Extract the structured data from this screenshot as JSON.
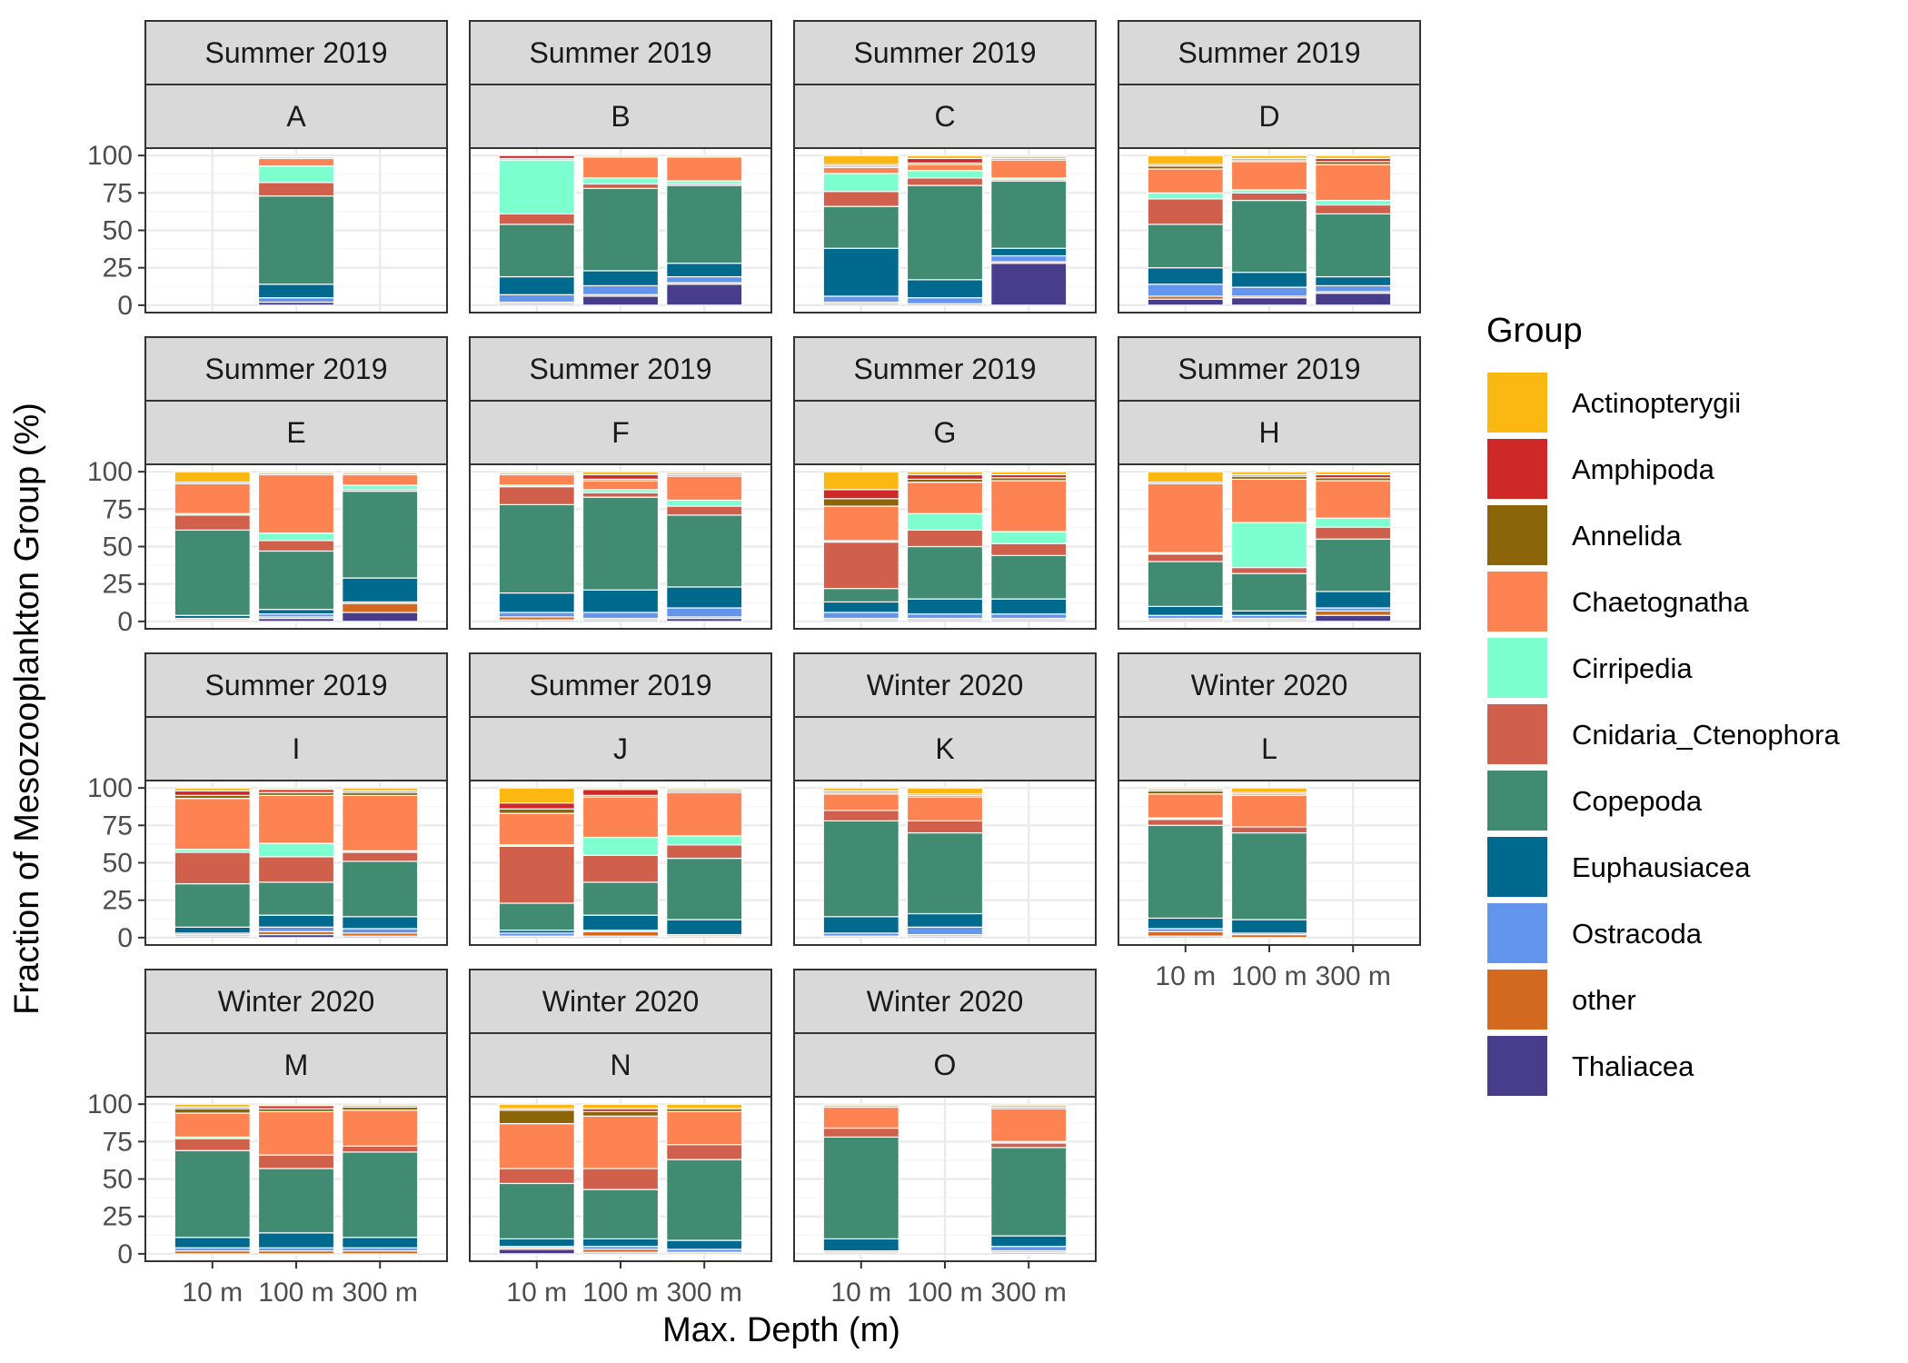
{
  "chart_data": {
    "type": "bar",
    "stacked": true,
    "xlabel": "Max. Depth (m)",
    "ylabel": "Fraction of Mesozooplankton Group (%)",
    "ylim": [
      0,
      100
    ],
    "y_ticks": [
      0,
      25,
      50,
      75,
      100
    ],
    "categories": [
      "10 m",
      "100 m",
      "300 m"
    ],
    "grid": true,
    "legend": {
      "title": "Group",
      "position": "right",
      "groups": [
        {
          "name": "Actinopterygii",
          "color": "#FBB812"
        },
        {
          "name": "Amphipoda",
          "color": "#CE2828"
        },
        {
          "name": "Annelida",
          "color": "#8C6508"
        },
        {
          "name": "Chaetognatha",
          "color": "#FD8452"
        },
        {
          "name": "Cirripedia",
          "color": "#7DFFD0"
        },
        {
          "name": "Cnidaria_Ctenophora",
          "color": "#D05F4B"
        },
        {
          "name": "Copepoda",
          "color": "#418B73"
        },
        {
          "name": "Euphausiacea",
          "color": "#006A8E"
        },
        {
          "name": "Ostracoda",
          "color": "#6495ED"
        },
        {
          "name": "other",
          "color": "#D2691E"
        },
        {
          "name": "Thaliacea",
          "color": "#483D8B"
        }
      ]
    },
    "stack_order_bottom_to_top": [
      "Thaliacea",
      "other",
      "Ostracoda",
      "Euphausiacea",
      "Copepoda",
      "Cnidaria_Ctenophora",
      "Cirripedia",
      "Chaetognatha",
      "Annelida",
      "Amphipoda",
      "Actinopterygii"
    ],
    "panels": [
      {
        "season": "Summer 2019",
        "station": "A",
        "bars": [
          null,
          {
            "Thaliacea": 2,
            "other": 0,
            "Ostracoda": 3,
            "Euphausiacea": 9,
            "Copepoda": 59,
            "Cnidaria_Ctenophora": 9,
            "Cirripedia": 11,
            "Chaetognatha": 5,
            "Annelida": 0,
            "Amphipoda": 0,
            "Actinopterygii": 1
          },
          null
        ]
      },
      {
        "season": "Summer 2019",
        "station": "B",
        "bars": [
          {
            "Thaliacea": 1,
            "other": 1,
            "Ostracoda": 5,
            "Euphausiacea": 12,
            "Copepoda": 35,
            "Cnidaria_Ctenophora": 7,
            "Cirripedia": 36,
            "Chaetognatha": 1,
            "Annelida": 0,
            "Amphipoda": 2,
            "Actinopterygii": 0
          },
          {
            "Thaliacea": 6,
            "other": 1,
            "Ostracoda": 6,
            "Euphausiacea": 10,
            "Copepoda": 55,
            "Cnidaria_Ctenophora": 3,
            "Cirripedia": 4,
            "Chaetognatha": 14,
            "Annelida": 0,
            "Amphipoda": 0,
            "Actinopterygii": 1
          },
          {
            "Thaliacea": 14,
            "other": 1,
            "Ostracoda": 4,
            "Euphausiacea": 9,
            "Copepoda": 52,
            "Cnidaria_Ctenophora": 1,
            "Cirripedia": 2,
            "Chaetognatha": 16,
            "Annelida": 0,
            "Amphipoda": 0,
            "Actinopterygii": 1
          }
        ]
      },
      {
        "season": "Summer 2019",
        "station": "C",
        "bars": [
          {
            "Thaliacea": 1,
            "other": 1,
            "Ostracoda": 4,
            "Euphausiacea": 32,
            "Copepoda": 28,
            "Cnidaria_Ctenophora": 10,
            "Cirripedia": 12,
            "Chaetognatha": 4,
            "Annelida": 1,
            "Amphipoda": 1,
            "Actinopterygii": 6
          },
          {
            "Thaliacea": 1,
            "other": 0,
            "Ostracoda": 4,
            "Euphausiacea": 12,
            "Copepoda": 63,
            "Cnidaria_Ctenophora": 5,
            "Cirripedia": 5,
            "Chaetognatha": 4,
            "Annelida": 1,
            "Amphipoda": 3,
            "Actinopterygii": 2
          },
          {
            "Thaliacea": 28,
            "other": 1,
            "Ostracoda": 4,
            "Euphausiacea": 5,
            "Copepoda": 45,
            "Cnidaria_Ctenophora": 1,
            "Cirripedia": 1,
            "Chaetognatha": 12,
            "Annelida": 1,
            "Amphipoda": 1,
            "Actinopterygii": 1
          }
        ]
      },
      {
        "season": "Summer 2019",
        "station": "D",
        "bars": [
          {
            "Thaliacea": 4,
            "other": 2,
            "Ostracoda": 8,
            "Euphausiacea": 11,
            "Copepoda": 29,
            "Cnidaria_Ctenophora": 17,
            "Cirripedia": 4,
            "Chaetognatha": 16,
            "Annelida": 2,
            "Amphipoda": 1,
            "Actinopterygii": 6
          },
          {
            "Thaliacea": 5,
            "other": 1,
            "Ostracoda": 6,
            "Euphausiacea": 10,
            "Copepoda": 48,
            "Cnidaria_Ctenophora": 5,
            "Cirripedia": 2,
            "Chaetognatha": 19,
            "Annelida": 1,
            "Amphipoda": 1,
            "Actinopterygii": 2
          },
          {
            "Thaliacea": 8,
            "other": 1,
            "Ostracoda": 4,
            "Euphausiacea": 6,
            "Copepoda": 42,
            "Cnidaria_Ctenophora": 6,
            "Cirripedia": 3,
            "Chaetognatha": 24,
            "Annelida": 2,
            "Amphipoda": 2,
            "Actinopterygii": 2
          }
        ]
      },
      {
        "season": "Summer 2019",
        "station": "E",
        "bars": [
          {
            "Thaliacea": 0,
            "other": 1,
            "Ostracoda": 1,
            "Euphausiacea": 2,
            "Copepoda": 57,
            "Cnidaria_Ctenophora": 10,
            "Cirripedia": 1,
            "Chaetognatha": 20,
            "Annelida": 1,
            "Amphipoda": 0,
            "Actinopterygii": 7
          },
          {
            "Thaliacea": 2,
            "other": 1,
            "Ostracoda": 2,
            "Euphausiacea": 3,
            "Copepoda": 39,
            "Cnidaria_Ctenophora": 7,
            "Cirripedia": 5,
            "Chaetognatha": 39,
            "Annelida": 1,
            "Amphipoda": 0,
            "Actinopterygii": 1
          },
          {
            "Thaliacea": 6,
            "other": 6,
            "Ostracoda": 1,
            "Euphausiacea": 16,
            "Copepoda": 58,
            "Cnidaria_Ctenophora": 1,
            "Cirripedia": 3,
            "Chaetognatha": 7,
            "Annelida": 1,
            "Amphipoda": 0,
            "Actinopterygii": 1
          }
        ]
      },
      {
        "season": "Summer 2019",
        "station": "F",
        "bars": [
          {
            "Thaliacea": 1,
            "other": 2,
            "Ostracoda": 3,
            "Euphausiacea": 13,
            "Copepoda": 59,
            "Cnidaria_Ctenophora": 12,
            "Cirripedia": 1,
            "Chaetognatha": 7,
            "Annelida": 1,
            "Amphipoda": 0,
            "Actinopterygii": 1
          },
          {
            "Thaliacea": 1,
            "other": 1,
            "Ostracoda": 4,
            "Euphausiacea": 15,
            "Copepoda": 62,
            "Cnidaria_Ctenophora": 3,
            "Cirripedia": 2,
            "Chaetognatha": 6,
            "Annelida": 1,
            "Amphipoda": 3,
            "Actinopterygii": 2
          },
          {
            "Thaliacea": 2,
            "other": 1,
            "Ostracoda": 6,
            "Euphausiacea": 14,
            "Copepoda": 48,
            "Cnidaria_Ctenophora": 6,
            "Cirripedia": 4,
            "Chaetognatha": 16,
            "Annelida": 1,
            "Amphipoda": 1,
            "Actinopterygii": 1
          }
        ]
      },
      {
        "season": "Summer 2019",
        "station": "G",
        "bars": [
          {
            "Thaliacea": 1,
            "other": 1,
            "Ostracoda": 4,
            "Euphausiacea": 7,
            "Copepoda": 9,
            "Cnidaria_Ctenophora": 31,
            "Cirripedia": 1,
            "Chaetognatha": 23,
            "Annelida": 5,
            "Amphipoda": 6,
            "Actinopterygii": 12
          },
          {
            "Thaliacea": 1,
            "other": 1,
            "Ostracoda": 3,
            "Euphausiacea": 10,
            "Copepoda": 35,
            "Cnidaria_Ctenophora": 11,
            "Cirripedia": 11,
            "Chaetognatha": 21,
            "Annelida": 2,
            "Amphipoda": 3,
            "Actinopterygii": 2
          },
          {
            "Thaliacea": 1,
            "other": 1,
            "Ostracoda": 3,
            "Euphausiacea": 10,
            "Copepoda": 29,
            "Cnidaria_Ctenophora": 8,
            "Cirripedia": 8,
            "Chaetognatha": 34,
            "Annelida": 2,
            "Amphipoda": 2,
            "Actinopterygii": 2
          }
        ]
      },
      {
        "season": "Summer 2019",
        "station": "H",
        "bars": [
          {
            "Thaliacea": 1,
            "other": 1,
            "Ostracoda": 2,
            "Euphausiacea": 6,
            "Copepoda": 30,
            "Cnidaria_Ctenophora": 5,
            "Cirripedia": 1,
            "Chaetognatha": 46,
            "Annelida": 1,
            "Amphipoda": 0,
            "Actinopterygii": 7
          },
          {
            "Thaliacea": 1,
            "other": 1,
            "Ostracoda": 2,
            "Euphausiacea": 3,
            "Copepoda": 25,
            "Cnidaria_Ctenophora": 4,
            "Cirripedia": 30,
            "Chaetognatha": 29,
            "Annelida": 2,
            "Amphipoda": 1,
            "Actinopterygii": 2
          },
          {
            "Thaliacea": 4,
            "other": 3,
            "Ostracoda": 2,
            "Euphausiacea": 11,
            "Copepoda": 35,
            "Cnidaria_Ctenophora": 8,
            "Cirripedia": 6,
            "Chaetognatha": 25,
            "Annelida": 2,
            "Amphipoda": 2,
            "Actinopterygii": 2
          }
        ]
      },
      {
        "season": "Summer 2019",
        "station": "I",
        "bars": [
          {
            "Thaliacea": 1,
            "other": 1,
            "Ostracoda": 1,
            "Euphausiacea": 4,
            "Copepoda": 29,
            "Cnidaria_Ctenophora": 21,
            "Cirripedia": 2,
            "Chaetognatha": 34,
            "Annelida": 2,
            "Amphipoda": 3,
            "Actinopterygii": 2
          },
          {
            "Thaliacea": 2,
            "other": 2,
            "Ostracoda": 3,
            "Euphausiacea": 8,
            "Copepoda": 22,
            "Cnidaria_Ctenophora": 17,
            "Cirripedia": 9,
            "Chaetognatha": 32,
            "Annelida": 2,
            "Amphipoda": 2,
            "Actinopterygii": 1
          },
          {
            "Thaliacea": 1,
            "other": 2,
            "Ostracoda": 3,
            "Euphausiacea": 8,
            "Copepoda": 37,
            "Cnidaria_Ctenophora": 6,
            "Cirripedia": 1,
            "Chaetognatha": 37,
            "Annelida": 2,
            "Amphipoda": 1,
            "Actinopterygii": 2
          }
        ]
      },
      {
        "season": "Summer 2019",
        "station": "J",
        "bars": [
          {
            "Thaliacea": 0,
            "other": 1,
            "Ostracoda": 2,
            "Euphausiacea": 2,
            "Copepoda": 18,
            "Cnidaria_Ctenophora": 38,
            "Cirripedia": 1,
            "Chaetognatha": 21,
            "Annelida": 3,
            "Amphipoda": 4,
            "Actinopterygii": 10
          },
          {
            "Thaliacea": 1,
            "other": 3,
            "Ostracoda": 1,
            "Euphausiacea": 10,
            "Copepoda": 22,
            "Cnidaria_Ctenophora": 18,
            "Cirripedia": 12,
            "Chaetognatha": 27,
            "Annelida": 1,
            "Amphipoda": 4,
            "Actinopterygii": 1
          },
          {
            "Thaliacea": 0,
            "other": 1,
            "Ostracoda": 1,
            "Euphausiacea": 10,
            "Copepoda": 41,
            "Cnidaria_Ctenophora": 9,
            "Cirripedia": 6,
            "Chaetognatha": 29,
            "Annelida": 1,
            "Amphipoda": 1,
            "Actinopterygii": 1
          }
        ]
      },
      {
        "season": "Winter 2020",
        "station": "K",
        "bars": [
          {
            "Thaliacea": 0,
            "other": 1,
            "Ostracoda": 2,
            "Euphausiacea": 11,
            "Copepoda": 64,
            "Cnidaria_Ctenophora": 7,
            "Cirripedia": 0,
            "Chaetognatha": 11,
            "Annelida": 1,
            "Amphipoda": 1,
            "Actinopterygii": 2
          },
          {
            "Thaliacea": 1,
            "other": 1,
            "Ostracoda": 5,
            "Euphausiacea": 9,
            "Copepoda": 54,
            "Cnidaria_Ctenophora": 8,
            "Cirripedia": 0,
            "Chaetognatha": 16,
            "Annelida": 1,
            "Amphipoda": 1,
            "Actinopterygii": 4
          },
          null
        ]
      },
      {
        "season": "Winter 2020",
        "station": "L",
        "bars": [
          {
            "Thaliacea": 1,
            "other": 3,
            "Ostracoda": 2,
            "Euphausiacea": 7,
            "Copepoda": 62,
            "Cnidaria_Ctenophora": 4,
            "Cirripedia": 1,
            "Chaetognatha": 16,
            "Annelida": 2,
            "Amphipoda": 1,
            "Actinopterygii": 1
          },
          {
            "Thaliacea": 0,
            "other": 2,
            "Ostracoda": 1,
            "Euphausiacea": 9,
            "Copepoda": 58,
            "Cnidaria_Ctenophora": 4,
            "Cirripedia": 0,
            "Chaetognatha": 21,
            "Annelida": 1,
            "Amphipoda": 1,
            "Actinopterygii": 3
          },
          null
        ]
      },
      {
        "season": "Winter 2020",
        "station": "M",
        "bars": [
          {
            "Thaliacea": 0,
            "other": 2,
            "Ostracoda": 2,
            "Euphausiacea": 7,
            "Copepoda": 58,
            "Cnidaria_Ctenophora": 8,
            "Cirripedia": 1,
            "Chaetognatha": 16,
            "Annelida": 3,
            "Amphipoda": 1,
            "Actinopterygii": 2
          },
          {
            "Thaliacea": 0,
            "other": 2,
            "Ostracoda": 2,
            "Euphausiacea": 10,
            "Copepoda": 43,
            "Cnidaria_Ctenophora": 9,
            "Cirripedia": 0,
            "Chaetognatha": 29,
            "Annelida": 2,
            "Amphipoda": 2,
            "Actinopterygii": 1
          },
          {
            "Thaliacea": 0,
            "other": 2,
            "Ostracoda": 2,
            "Euphausiacea": 7,
            "Copepoda": 57,
            "Cnidaria_Ctenophora": 4,
            "Cirripedia": 0,
            "Chaetognatha": 24,
            "Annelida": 2,
            "Amphipoda": 1,
            "Actinopterygii": 1
          }
        ]
      },
      {
        "season": "Winter 2020",
        "station": "N",
        "bars": [
          {
            "Thaliacea": 3,
            "other": 1,
            "Ostracoda": 1,
            "Euphausiacea": 5,
            "Copepoda": 37,
            "Cnidaria_Ctenophora": 10,
            "Cirripedia": 0,
            "Chaetognatha": 30,
            "Annelida": 9,
            "Amphipoda": 1,
            "Actinopterygii": 3
          },
          {
            "Thaliacea": 1,
            "other": 2,
            "Ostracoda": 2,
            "Euphausiacea": 5,
            "Copepoda": 33,
            "Cnidaria_Ctenophora": 14,
            "Cirripedia": 0,
            "Chaetognatha": 35,
            "Annelida": 3,
            "Amphipoda": 2,
            "Actinopterygii": 3
          },
          {
            "Thaliacea": 0,
            "other": 1,
            "Ostracoda": 2,
            "Euphausiacea": 6,
            "Copepoda": 54,
            "Cnidaria_Ctenophora": 10,
            "Cirripedia": 0,
            "Chaetognatha": 22,
            "Annelida": 2,
            "Amphipoda": 0,
            "Actinopterygii": 3
          }
        ]
      },
      {
        "season": "Winter 2020",
        "station": "O",
        "bars": [
          {
            "Thaliacea": 0,
            "other": 1,
            "Ostracoda": 1,
            "Euphausiacea": 8,
            "Copepoda": 68,
            "Cnidaria_Ctenophora": 6,
            "Cirripedia": 0,
            "Chaetognatha": 14,
            "Annelida": 1,
            "Amphipoda": 0,
            "Actinopterygii": 1
          },
          null,
          {
            "Thaliacea": 1,
            "other": 1,
            "Ostracoda": 3,
            "Euphausiacea": 7,
            "Copepoda": 59,
            "Cnidaria_Ctenophora": 3,
            "Cirripedia": 1,
            "Chaetognatha": 22,
            "Annelida": 1,
            "Amphipoda": 1,
            "Actinopterygii": 1
          }
        ]
      }
    ]
  }
}
